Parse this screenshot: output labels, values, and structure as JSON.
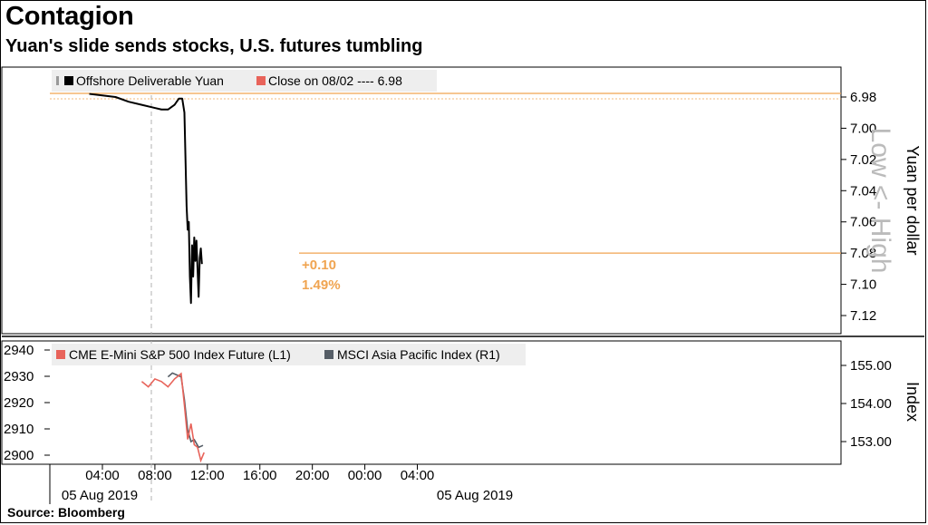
{
  "title": "Contagion",
  "subtitle": "Yuan's slide sends stocks, U.S. futures tumbling",
  "source": "Source: Bloomberg",
  "colors": {
    "yuan": "#000000",
    "close_line": "#f0a450",
    "sp500": "#e8635a",
    "msci": "#555d66",
    "annotation": "#f0a450",
    "low_high": "#bbbbbb"
  },
  "chart_data": [
    {
      "type": "line",
      "ylabel": "Yuan per dollar",
      "y_inverted": true,
      "axis_note": "Low <- High",
      "ylim": [
        6.98,
        7.13
      ],
      "y_ticks": [
        "6.98",
        "7.00",
        "7.02",
        "7.04",
        "7.06",
        "7.08",
        "7.10",
        "7.12"
      ],
      "x_ticks": [
        "04:00",
        "08:00",
        "12:00",
        "16:00",
        "20:00",
        "00:00",
        "04:00"
      ],
      "x_date_labels": [
        "05 Aug 2019",
        "05 Aug 2019"
      ],
      "legend": [
        {
          "name": "Offshore Deliverable Yuan",
          "icon": "black-square-icon"
        },
        {
          "name": "Close on 08/02 ---- 6.98",
          "icon": "red-square-icon"
        }
      ],
      "reference_line": {
        "label": "Close on 08/02",
        "value": 6.98
      },
      "last_value_line": 7.08,
      "annotation": {
        "change": "+0.10",
        "percent": "1.49%"
      },
      "series": [
        {
          "name": "Offshore Deliverable Yuan",
          "x": [
            "03:00",
            "04:00",
            "05:00",
            "06:00",
            "07:00",
            "08:00",
            "08:30",
            "09:00",
            "09:30",
            "09:50",
            "10:05",
            "10:15",
            "10:25",
            "10:30",
            "10:35",
            "10:40",
            "10:45",
            "10:50",
            "10:55",
            "11:00",
            "11:05",
            "11:10",
            "11:15",
            "11:20",
            "11:25",
            "11:30",
            "11:35"
          ],
          "values": [
            6.978,
            6.979,
            6.98,
            6.983,
            6.985,
            6.987,
            6.988,
            6.988,
            6.985,
            6.981,
            6.981,
            6.99,
            7.05,
            7.065,
            7.06,
            7.095,
            7.112,
            7.075,
            7.095,
            7.07,
            7.085,
            7.072,
            7.09,
            7.108,
            7.083,
            7.077,
            7.087
          ]
        }
      ]
    },
    {
      "type": "line",
      "ylabel": "Index",
      "y_left_ticks": [
        "2940",
        "2930",
        "2920",
        "2910",
        "2900"
      ],
      "y_right_ticks": [
        "155.00",
        "154.00",
        "153.00"
      ],
      "ylim_left": [
        2895,
        2943
      ],
      "ylim_right": [
        152.55,
        155.8
      ],
      "legend": [
        {
          "name": "CME E-Mini S&P 500 Index Future (L1)",
          "icon": "red-square-icon"
        },
        {
          "name": "MSCI Asia Pacific Index (R1)",
          "icon": "gray-square-icon"
        }
      ],
      "series": [
        {
          "name": "CME E-Mini S&P 500 Index Future (L1)",
          "axis": "left",
          "x": [
            "07:00",
            "07:30",
            "08:00",
            "08:30",
            "09:00",
            "09:30",
            "10:00",
            "10:15",
            "10:30",
            "10:45",
            "11:00",
            "11:15",
            "11:30",
            "11:45"
          ],
          "values": [
            2928,
            2926,
            2929,
            2928,
            2926,
            2929,
            2931,
            2919,
            2906,
            2912,
            2904,
            2903,
            2898,
            2901
          ]
        },
        {
          "name": "MSCI Asia Pacific Index (R1)",
          "axis": "right",
          "x": [
            "09:00",
            "09:20",
            "09:40",
            "10:00",
            "10:15",
            "10:30",
            "10:45",
            "11:00",
            "11:20",
            "11:40"
          ],
          "values": [
            154.7,
            154.8,
            154.75,
            154.7,
            154.1,
            153.3,
            153.0,
            153.05,
            152.85,
            152.9
          ]
        }
      ]
    }
  ]
}
